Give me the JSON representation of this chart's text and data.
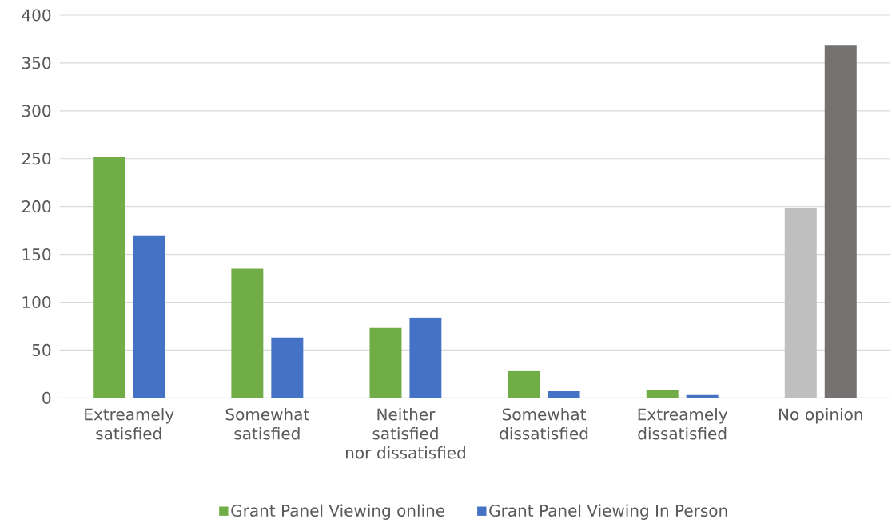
{
  "chart_data": {
    "type": "bar",
    "categories": [
      "Extreamely satisfied",
      "Somewhat satisfied",
      "Neither satisfied nor dissatisfied",
      "Somewhat dissatisfied",
      "Extreamely dissatisfied",
      "No opinion"
    ],
    "series": [
      {
        "name": "Grant Panel Viewing online",
        "color": "#70ad47",
        "colors": [
          "#70ad47",
          "#70ad47",
          "#70ad47",
          "#70ad47",
          "#70ad47",
          "#bfbfbf"
        ],
        "values": [
          252,
          135,
          73,
          28,
          8,
          198
        ]
      },
      {
        "name": "Grant Panel Viewing In Person",
        "color": "#4472c4",
        "colors": [
          "#4472c4",
          "#4472c4",
          "#4472c4",
          "#4472c4",
          "#4472c4",
          "#767171"
        ],
        "values": [
          170,
          63,
          84,
          7,
          3,
          369
        ]
      }
    ],
    "ylim": [
      0,
      400
    ],
    "yticks": [
      0,
      50,
      100,
      150,
      200,
      250,
      300,
      350,
      400
    ],
    "grid": "y",
    "legend": "bottom"
  }
}
